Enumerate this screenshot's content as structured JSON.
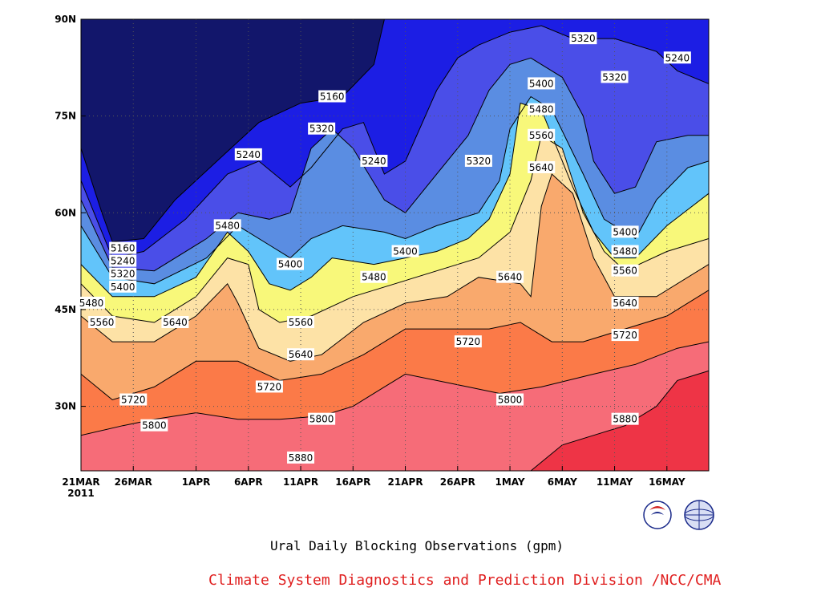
{
  "chart_data": {
    "type": "heatmap",
    "title": "Ural Daily Blocking Observations (gpm)",
    "credit": "Climate System Diagnostics and Prediction Division /NCC/CMA",
    "x_ticks": [
      "21MAR",
      "26MAR",
      "1APR",
      "6APR",
      "11APR",
      "16APR",
      "21APR",
      "26APR",
      "1MAY",
      "6MAY",
      "11MAY",
      "16MAY"
    ],
    "x_year_label": "2011",
    "x_range": [
      "2011-03-21",
      "2011-05-20"
    ],
    "y_ticks": [
      "90N",
      "75N",
      "60N",
      "45N",
      "30N"
    ],
    "y_range": [
      20,
      90
    ],
    "grid": "dotted",
    "levels": [
      5160,
      5240,
      5320,
      5400,
      5480,
      5560,
      5640,
      5720,
      5800,
      5880
    ],
    "level_colors": [
      "#12166b",
      "#1c1ee4",
      "#4a4ee8",
      "#5a8de2",
      "#62c4fa",
      "#f8f87a",
      "#fde2a6",
      "#f9a96d",
      "#fb7a48",
      "#f66c78",
      "#ee3446"
    ],
    "contours": [
      {
        "level": 5160,
        "points": [
          [
            "2011-03-21",
            70
          ],
          [
            "2011-03-23",
            60
          ],
          [
            "2011-03-24",
            55.5
          ],
          [
            "2011-03-27",
            56
          ],
          [
            "2011-03-30",
            62
          ],
          [
            "2011-04-03",
            68
          ],
          [
            "2011-04-07",
            74
          ],
          [
            "2011-04-11",
            77
          ],
          [
            "2011-04-15",
            78
          ],
          [
            "2011-04-18",
            83
          ],
          [
            "2011-04-19",
            90
          ]
        ]
      },
      {
        "level": 5240,
        "points": [
          [
            "2011-03-21",
            65
          ],
          [
            "2011-03-24",
            53
          ],
          [
            "2011-03-27",
            54
          ],
          [
            "2011-03-31",
            59
          ],
          [
            "2011-04-04",
            66
          ],
          [
            "2011-04-07",
            68
          ],
          [
            "2011-04-10",
            64
          ],
          [
            "2011-04-12",
            67
          ],
          [
            "2011-04-15",
            73
          ],
          [
            "2011-04-17",
            74
          ],
          [
            "2011-04-19",
            66
          ],
          [
            "2011-04-21",
            68
          ],
          [
            "2011-04-24",
            79
          ],
          [
            "2011-04-26",
            84
          ],
          [
            "2011-04-28",
            86
          ],
          [
            "2011-05-01",
            88
          ],
          [
            "2011-05-04",
            89
          ],
          [
            "2011-05-07",
            87
          ],
          [
            "2011-05-11",
            87
          ],
          [
            "2011-05-15",
            85
          ],
          [
            "2011-05-17",
            82
          ],
          [
            "2011-05-20",
            80
          ]
        ]
      },
      {
        "level": 5320,
        "points": [
          [
            "2011-03-21",
            62
          ],
          [
            "2011-03-24",
            51.5
          ],
          [
            "2011-03-28",
            51
          ],
          [
            "2011-04-02",
            56
          ],
          [
            "2011-04-05",
            60
          ],
          [
            "2011-04-08",
            59
          ],
          [
            "2011-04-10",
            60
          ],
          [
            "2011-04-12",
            70
          ],
          [
            "2011-04-14",
            73
          ],
          [
            "2011-04-16",
            70
          ],
          [
            "2011-04-19",
            62
          ],
          [
            "2011-04-21",
            60
          ],
          [
            "2011-04-24",
            66
          ],
          [
            "2011-04-27",
            72
          ],
          [
            "2011-04-29",
            79
          ],
          [
            "2011-05-01",
            83
          ],
          [
            "2011-05-03",
            84
          ],
          [
            "2011-05-06",
            81
          ],
          [
            "2011-05-08",
            75
          ],
          [
            "2011-05-09",
            68
          ],
          [
            "2011-05-11",
            63
          ],
          [
            "2011-05-13",
            64
          ],
          [
            "2011-05-15",
            71
          ],
          [
            "2011-05-18",
            72
          ],
          [
            "2011-05-20",
            72
          ]
        ]
      },
      {
        "level": 5400,
        "points": [
          [
            "2011-03-21",
            58
          ],
          [
            "2011-03-24",
            50
          ],
          [
            "2011-03-28",
            49
          ],
          [
            "2011-04-02",
            53
          ],
          [
            "2011-04-05",
            58
          ],
          [
            "2011-04-08",
            55
          ],
          [
            "2011-04-10",
            53
          ],
          [
            "2011-04-12",
            56
          ],
          [
            "2011-04-15",
            58
          ],
          [
            "2011-04-19",
            57
          ],
          [
            "2011-04-21",
            56
          ],
          [
            "2011-04-24",
            58
          ],
          [
            "2011-04-28",
            60
          ],
          [
            "2011-04-30",
            65
          ],
          [
            "2011-05-01",
            73
          ],
          [
            "2011-05-03",
            78
          ],
          [
            "2011-05-05",
            76
          ],
          [
            "2011-05-08",
            66
          ],
          [
            "2011-05-10",
            59
          ],
          [
            "2011-05-13",
            56
          ],
          [
            "2011-05-15",
            62
          ],
          [
            "2011-05-18",
            67
          ],
          [
            "2011-05-20",
            68
          ]
        ]
      },
      {
        "level": 5480,
        "points": [
          [
            "2011-03-21",
            52
          ],
          [
            "2011-03-24",
            47
          ],
          [
            "2011-03-28",
            47
          ],
          [
            "2011-04-01",
            50
          ],
          [
            "2011-04-04",
            57
          ],
          [
            "2011-04-06",
            54
          ],
          [
            "2011-04-08",
            49
          ],
          [
            "2011-04-10",
            48
          ],
          [
            "2011-04-12",
            50
          ],
          [
            "2011-04-14",
            53
          ],
          [
            "2011-04-18",
            52
          ],
          [
            "2011-04-21",
            53
          ],
          [
            "2011-04-24",
            54
          ],
          [
            "2011-04-27",
            56
          ],
          [
            "2011-04-29",
            59
          ],
          [
            "2011-05-01",
            66
          ],
          [
            "2011-05-02",
            77
          ],
          [
            "2011-05-04",
            76
          ],
          [
            "2011-05-07",
            64
          ],
          [
            "2011-05-09",
            57
          ],
          [
            "2011-05-11",
            53
          ],
          [
            "2011-05-13",
            53
          ],
          [
            "2011-05-16",
            58
          ],
          [
            "2011-05-20",
            63
          ]
        ]
      },
      {
        "level": 5560,
        "points": [
          [
            "2011-03-21",
            49
          ],
          [
            "2011-03-24",
            44
          ],
          [
            "2011-03-28",
            43
          ],
          [
            "2011-04-01",
            47
          ],
          [
            "2011-04-04",
            53
          ],
          [
            "2011-04-06",
            52
          ],
          [
            "2011-04-07",
            45
          ],
          [
            "2011-04-09",
            43
          ],
          [
            "2011-04-12",
            44
          ],
          [
            "2011-04-16",
            47
          ],
          [
            "2011-04-20",
            49
          ],
          [
            "2011-04-24",
            51
          ],
          [
            "2011-04-28",
            53
          ],
          [
            "2011-05-01",
            57
          ],
          [
            "2011-05-03",
            65
          ],
          [
            "2011-05-04",
            72
          ],
          [
            "2011-05-06",
            70
          ],
          [
            "2011-05-08",
            60
          ],
          [
            "2011-05-10",
            54
          ],
          [
            "2011-05-12",
            51
          ],
          [
            "2011-05-16",
            54
          ],
          [
            "2011-05-20",
            56
          ]
        ]
      },
      {
        "level": 5640,
        "points": [
          [
            "2011-03-21",
            44
          ],
          [
            "2011-03-24",
            40
          ],
          [
            "2011-03-28",
            40
          ],
          [
            "2011-04-01",
            44
          ],
          [
            "2011-04-04",
            49
          ],
          [
            "2011-04-05",
            46
          ],
          [
            "2011-04-07",
            39
          ],
          [
            "2011-04-10",
            37
          ],
          [
            "2011-04-13",
            38
          ],
          [
            "2011-04-17",
            43
          ],
          [
            "2011-04-21",
            46
          ],
          [
            "2011-04-25",
            47
          ],
          [
            "2011-04-28",
            50
          ],
          [
            "2011-05-02",
            49
          ],
          [
            "2011-05-03",
            47
          ],
          [
            "2011-05-04",
            61
          ],
          [
            "2011-05-05",
            66
          ],
          [
            "2011-05-07",
            63
          ],
          [
            "2011-05-09",
            53
          ],
          [
            "2011-05-11",
            47
          ],
          [
            "2011-05-15",
            47
          ],
          [
            "2011-05-20",
            52
          ]
        ]
      },
      {
        "level": 5720,
        "points": [
          [
            "2011-03-21",
            35
          ],
          [
            "2011-03-24",
            31
          ],
          [
            "2011-03-28",
            33
          ],
          [
            "2011-04-01",
            37
          ],
          [
            "2011-04-05",
            37
          ],
          [
            "2011-04-09",
            34
          ],
          [
            "2011-04-13",
            35
          ],
          [
            "2011-04-17",
            38
          ],
          [
            "2011-04-21",
            42
          ],
          [
            "2011-04-25",
            42
          ],
          [
            "2011-04-29",
            42
          ],
          [
            "2011-05-02",
            43
          ],
          [
            "2011-05-05",
            40
          ],
          [
            "2011-05-08",
            40
          ],
          [
            "2011-05-12",
            42
          ],
          [
            "2011-05-16",
            44
          ],
          [
            "2011-05-20",
            48
          ]
        ]
      },
      {
        "level": 5800,
        "points": [
          [
            "2011-03-21",
            25.5
          ],
          [
            "2011-03-25",
            27
          ],
          [
            "2011-03-28",
            28
          ],
          [
            "2011-04-01",
            29
          ],
          [
            "2011-04-05",
            28
          ],
          [
            "2011-04-09",
            28
          ],
          [
            "2011-04-13",
            28.5
          ],
          [
            "2011-04-16",
            30
          ],
          [
            "2011-04-19",
            33
          ],
          [
            "2011-04-21",
            35
          ],
          [
            "2011-04-24",
            34
          ],
          [
            "2011-04-27",
            33
          ],
          [
            "2011-04-30",
            32
          ],
          [
            "2011-05-04",
            33
          ],
          [
            "2011-05-09",
            35
          ],
          [
            "2011-05-13",
            36.5
          ],
          [
            "2011-05-17",
            39
          ],
          [
            "2011-05-20",
            40
          ]
        ]
      },
      {
        "level": 5880,
        "points": [
          [
            "2011-05-03",
            20
          ],
          [
            "2011-05-06",
            24
          ],
          [
            "2011-05-10",
            26
          ],
          [
            "2011-05-12",
            27
          ],
          [
            "2011-05-15",
            30
          ],
          [
            "2011-05-17",
            34
          ],
          [
            "2011-05-19",
            35
          ],
          [
            "2011-05-20",
            35.5
          ]
        ]
      }
    ],
    "labels": [
      {
        "text": "5160",
        "x": "2011-03-25",
        "y": 54.5
      },
      {
        "text": "5240",
        "x": "2011-03-25",
        "y": 52.5
      },
      {
        "text": "5320",
        "x": "2011-03-25",
        "y": 50.5
      },
      {
        "text": "5400",
        "x": "2011-03-25",
        "y": 48.5
      },
      {
        "text": "5480",
        "x": "2011-03-22",
        "y": 46
      },
      {
        "text": "5560",
        "x": "2011-03-23",
        "y": 43
      },
      {
        "text": "5640",
        "x": "2011-03-30",
        "y": 43
      },
      {
        "text": "5720",
        "x": "2011-03-26",
        "y": 31
      },
      {
        "text": "5800",
        "x": "2011-03-28",
        "y": 27
      },
      {
        "text": "5240",
        "x": "2011-04-06",
        "y": 69
      },
      {
        "text": "5480",
        "x": "2011-04-04",
        "y": 58
      },
      {
        "text": "5160",
        "x": "2011-04-14",
        "y": 78
      },
      {
        "text": "5320",
        "x": "2011-04-13",
        "y": 73
      },
      {
        "text": "5240",
        "x": "2011-04-18",
        "y": 68
      },
      {
        "text": "5400",
        "x": "2011-04-10",
        "y": 52
      },
      {
        "text": "5560",
        "x": "2011-04-11",
        "y": 43
      },
      {
        "text": "5640",
        "x": "2011-04-11",
        "y": 38
      },
      {
        "text": "5720",
        "x": "2011-04-08",
        "y": 33
      },
      {
        "text": "5800",
        "x": "2011-04-13",
        "y": 28
      },
      {
        "text": "5880",
        "x": "2011-04-11",
        "y": 22
      },
      {
        "text": "5400",
        "x": "2011-04-21",
        "y": 54
      },
      {
        "text": "5480",
        "x": "2011-04-18",
        "y": 50
      },
      {
        "text": "5320",
        "x": "2011-04-28",
        "y": 68
      },
      {
        "text": "5720",
        "x": "2011-04-27",
        "y": 40
      },
      {
        "text": "5640",
        "x": "2011-05-01",
        "y": 50
      },
      {
        "text": "5800",
        "x": "2011-05-01",
        "y": 31
      },
      {
        "text": "5320",
        "x": "2011-05-08",
        "y": 87
      },
      {
        "text": "5400",
        "x": "2011-05-04",
        "y": 80
      },
      {
        "text": "5480",
        "x": "2011-05-04",
        "y": 76
      },
      {
        "text": "5560",
        "x": "2011-05-04",
        "y": 72
      },
      {
        "text": "5640",
        "x": "2011-05-04",
        "y": 67
      },
      {
        "text": "5320",
        "x": "2011-05-11",
        "y": 81
      },
      {
        "text": "5240",
        "x": "2011-05-17",
        "y": 84
      },
      {
        "text": "5400",
        "x": "2011-05-12",
        "y": 57
      },
      {
        "text": "5480",
        "x": "2011-05-12",
        "y": 54
      },
      {
        "text": "5560",
        "x": "2011-05-12",
        "y": 51
      },
      {
        "text": "5640",
        "x": "2011-05-12",
        "y": 46
      },
      {
        "text": "5720",
        "x": "2011-05-12",
        "y": 41
      },
      {
        "text": "5880",
        "x": "2011-05-12",
        "y": 28
      }
    ]
  }
}
